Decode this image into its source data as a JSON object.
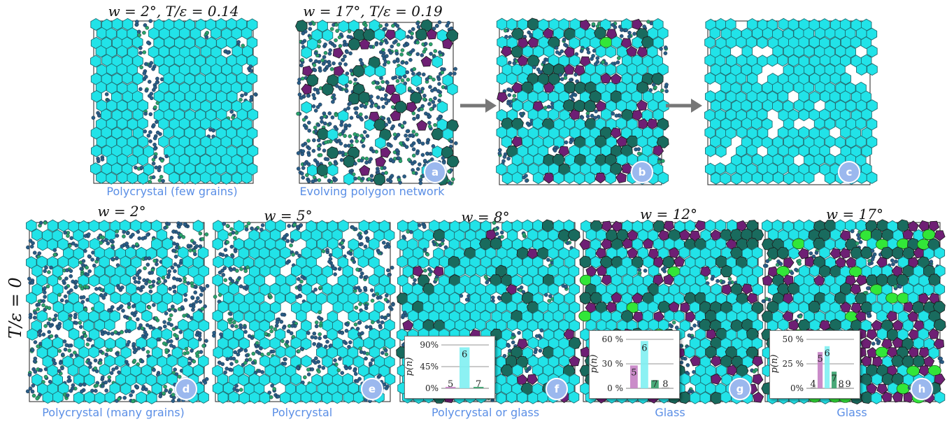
{
  "top_titles": [
    {
      "text": "w = 2°,  T/ε = 0.14"
    },
    {
      "text": "w = 17°,  T/ε = 0.19"
    }
  ],
  "top_captions": [
    "Polycrystal (few grains)",
    "Evolving polygon network"
  ],
  "bottom_titles": [
    "w = 2°",
    "w = 5°",
    "w = 8°",
    "w = 12°",
    "w = 17°"
  ],
  "bottom_captions": [
    "Polycrystal (many grains)",
    "Polycrystal",
    "Polycrystal or glass",
    "Glass",
    "Glass"
  ],
  "row_label": "T/ε = 0",
  "badges": [
    "a",
    "b",
    "c",
    "d",
    "e",
    "f",
    "g",
    "h"
  ],
  "colors": {
    "hex6": "#21e3e8",
    "hex6_dark": "#1f6e73",
    "pent": "#6e1f74",
    "hept": "#196b5e",
    "oct": "#32e638",
    "particle": "#2a5d86",
    "particle_green": "#2aa36a",
    "caption": "#5b8fe6",
    "badge": "#9bb8ee"
  },
  "chart_data": [
    {
      "type": "bar",
      "panel": "f",
      "ylabel": "p(n)",
      "categories": [
        "5",
        "6",
        "7"
      ],
      "values": [
        3,
        85,
        3
      ],
      "ylim": [
        0,
        90
      ],
      "ytick_labels": [
        "0%",
        "45%",
        "90%"
      ],
      "yticks": [
        0,
        45,
        90
      ],
      "grid": true
    },
    {
      "type": "bar",
      "panel": "g",
      "ylabel": "p(n)",
      "categories": [
        "5",
        "6",
        "7",
        "8"
      ],
      "values": [
        28,
        58,
        10,
        1
      ],
      "ylim": [
        0,
        60
      ],
      "ytick_labels": [
        "0 %",
        "30 %",
        "60 %"
      ],
      "yticks": [
        0,
        30,
        60
      ],
      "grid": true
    },
    {
      "type": "bar",
      "panel": "h",
      "ylabel": "p(n)",
      "categories": [
        "4",
        "5",
        "6",
        "7",
        "8",
        "9"
      ],
      "values": [
        1,
        37,
        43,
        17,
        2,
        0.5
      ],
      "ylim": [
        0,
        50
      ],
      "ytick_labels": [
        "0%",
        "25 %",
        "50 %"
      ],
      "yticks": [
        0,
        25,
        50
      ],
      "grid": true
    }
  ]
}
